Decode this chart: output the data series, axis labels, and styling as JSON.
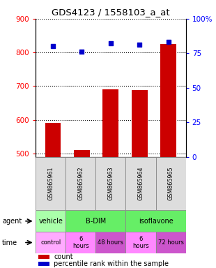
{
  "title": "GDS4123 / 1558103_a_at",
  "samples": [
    "GSM865961",
    "GSM865962",
    "GSM865963",
    "GSM865964",
    "GSM865965"
  ],
  "bar_values": [
    590,
    510,
    690,
    688,
    825
  ],
  "dot_values": [
    80,
    76,
    82,
    81,
    83
  ],
  "ylim_left": [
    490,
    900
  ],
  "ylim_right": [
    0,
    100
  ],
  "yticks_left": [
    500,
    600,
    700,
    800,
    900
  ],
  "yticks_right": [
    0,
    25,
    50,
    75,
    100
  ],
  "bar_color": "#cc0000",
  "dot_color": "#0000cc",
  "bar_bottom": 490,
  "agent_spans": [
    {
      "label": "vehicle",
      "start": 0,
      "end": 1,
      "color": "#aaffaa"
    },
    {
      "label": "B-DIM",
      "start": 1,
      "end": 3,
      "color": "#66ee66"
    },
    {
      "label": "isoflavone",
      "start": 3,
      "end": 5,
      "color": "#66ee66"
    }
  ],
  "time_cells": [
    {
      "label": "control",
      "color": "#ffaaff"
    },
    {
      "label": "6\nhours",
      "color": "#ff88ff"
    },
    {
      "label": "48 hours",
      "color": "#cc55cc"
    },
    {
      "label": "6\nhours",
      "color": "#ff88ff"
    },
    {
      "label": "72 hours",
      "color": "#cc55cc"
    }
  ],
  "sample_bg": "#dddddd"
}
